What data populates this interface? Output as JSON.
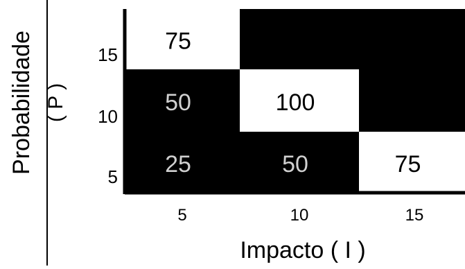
{
  "chart_data": {
    "type": "heatmap",
    "title": "",
    "xlabel": "Impacto ( I )",
    "ylabel_line1": "Probabilidade",
    "ylabel_line2": "( P )",
    "x_categories": [
      "5",
      "10",
      "15"
    ],
    "y_categories": [
      "5",
      "10",
      "15"
    ],
    "cells": [
      {
        "x": "5",
        "y": "15",
        "value": "75",
        "fill": "#ffffff",
        "text_color": "#000000"
      },
      {
        "x": "10",
        "y": "15",
        "value": "",
        "fill": "#000000",
        "text_color": "#ffffff"
      },
      {
        "x": "15",
        "y": "15",
        "value": "",
        "fill": "#000000",
        "text_color": "#ffffff"
      },
      {
        "x": "5",
        "y": "10",
        "value": "50",
        "fill": "#000000",
        "text_color": "#d0d0d0"
      },
      {
        "x": "10",
        "y": "10",
        "value": "100",
        "fill": "#ffffff",
        "text_color": "#000000"
      },
      {
        "x": "15",
        "y": "10",
        "value": "",
        "fill": "#000000",
        "text_color": "#ffffff"
      },
      {
        "x": "5",
        "y": "5",
        "value": "25",
        "fill": "#000000",
        "text_color": "#d0d0d0"
      },
      {
        "x": "10",
        "y": "5",
        "value": "50",
        "fill": "#000000",
        "text_color": "#d0d0d0"
      },
      {
        "x": "15",
        "y": "5",
        "value": "75",
        "fill": "#ffffff",
        "text_color": "#000000"
      }
    ],
    "colors": {
      "axis": "#000000",
      "frame": "#000000"
    }
  }
}
